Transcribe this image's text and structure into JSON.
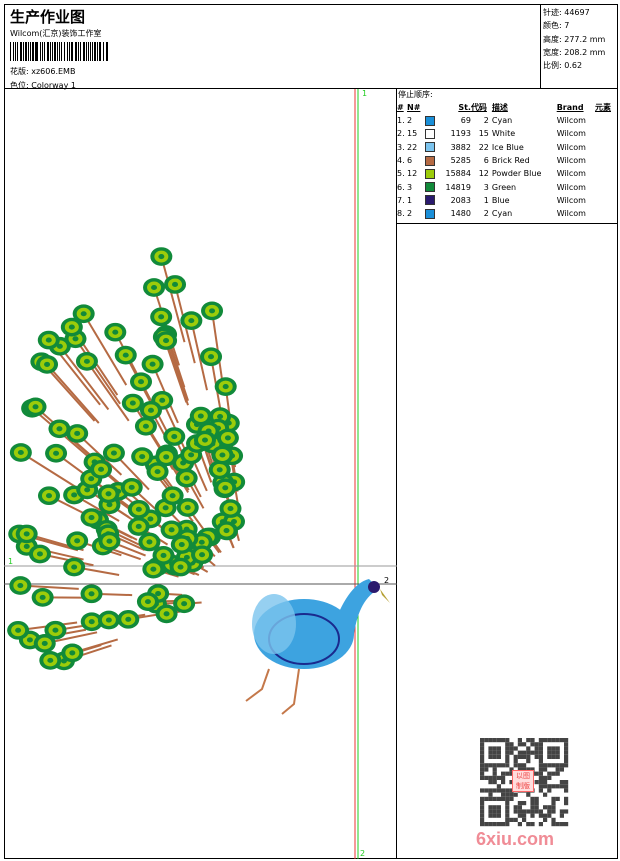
{
  "header": {
    "title": "生产作业图",
    "company": "Wilcom(汇京)装饰工作室",
    "pattern_label": "花版:",
    "pattern": "xz606.EMB",
    "colorway_label": "色位:",
    "colorway": "Colorway 1"
  },
  "stats": [
    {
      "label": "针迹:",
      "value": "44697"
    },
    {
      "label": "颜色:",
      "value": "7"
    },
    {
      "label": "高度:",
      "value": "277.2 mm"
    },
    {
      "label": "宽度:",
      "value": "208.2 mm"
    },
    {
      "label": "比例:",
      "value": "0.62"
    }
  ],
  "stop_sequence": {
    "title": "停止顺序:",
    "columns": [
      "#",
      "N#",
      "",
      "St.",
      "代码",
      "描述",
      "Brand",
      "元素"
    ],
    "rows": [
      {
        "idx": "1.",
        "n": "2",
        "color": "#1a8fd8",
        "st": "69",
        "code": "2",
        "desc": "Cyan",
        "brand": "Wilcom"
      },
      {
        "idx": "2.",
        "n": "15",
        "color": "#ffffff",
        "st": "1193",
        "code": "15",
        "desc": "White",
        "brand": "Wilcom"
      },
      {
        "idx": "3.",
        "n": "22",
        "color": "#7cc4ee",
        "st": "3882",
        "code": "22",
        "desc": "Ice Blue",
        "brand": "Wilcom"
      },
      {
        "idx": "4.",
        "n": "6",
        "color": "#b56a43",
        "st": "5285",
        "code": "6",
        "desc": "Brick Red",
        "brand": "Wilcom"
      },
      {
        "idx": "5.",
        "n": "12",
        "color": "#9ccc0a",
        "st": "15884",
        "code": "12",
        "desc": "Powder Blue",
        "brand": "Wilcom"
      },
      {
        "idx": "6.",
        "n": "3",
        "color": "#118a3a",
        "st": "14819",
        "code": "3",
        "desc": "Green",
        "brand": "Wilcom"
      },
      {
        "idx": "7.",
        "n": "1",
        "color": "#2a1a6e",
        "st": "2083",
        "code": "1",
        "desc": "Blue",
        "brand": "Wilcom"
      },
      {
        "idx": "8.",
        "n": "2",
        "color": "#1a8fd8",
        "st": "1480",
        "code": "2",
        "desc": "Cyan",
        "brand": "Wilcom"
      }
    ]
  },
  "guides": {
    "v_top": "1",
    "v_bottom": "2",
    "h_left": "1",
    "h_right": "2"
  },
  "watermark": {
    "text": "6xiu.com",
    "stamp": "以图制版"
  }
}
